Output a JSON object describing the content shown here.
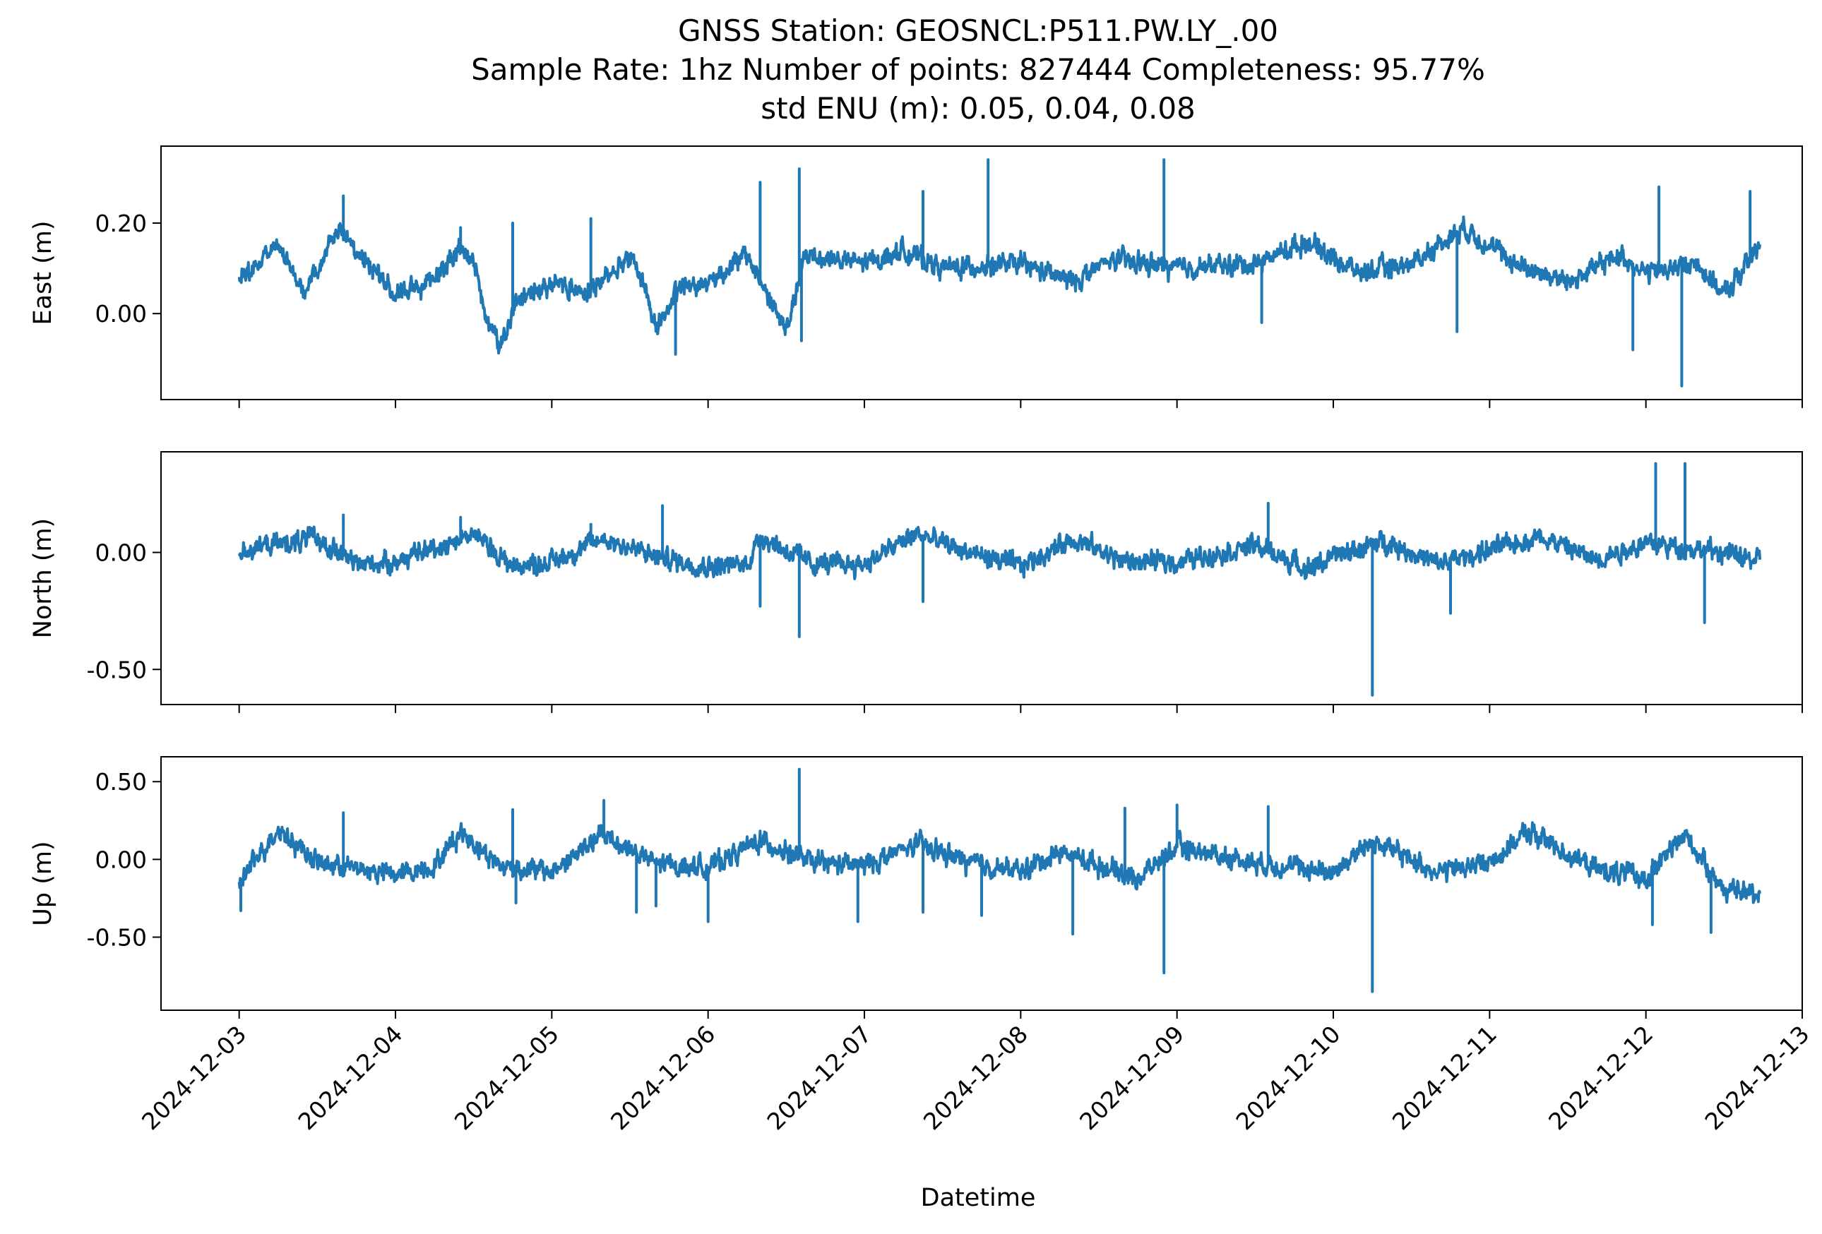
{
  "figure": {
    "title_lines": [
      "GNSS Station: GEOSNCL:P511.PW.LY_.00",
      "Sample Rate: 1hz   Number of points: 827444    Completeness:  95.77%",
      "std ENU (m):  0.05, 0.04, 0.08"
    ],
    "xlabel": "Datetime",
    "line_color": "#1f77b4"
  },
  "chart_data": {
    "type": "line",
    "x_axis": {
      "label": "Datetime",
      "range": [
        "2024-12-02T12:00",
        "2024-12-13T00:00"
      ],
      "ticks": [
        "2024-12-03",
        "2024-12-04",
        "2024-12-05",
        "2024-12-06",
        "2024-12-07",
        "2024-12-08",
        "2024-12-09",
        "2024-12-10",
        "2024-12-11",
        "2024-12-12",
        "2024-12-13"
      ],
      "data_start": "2024-12-03T00:00",
      "data_end": "2024-12-12T17:30"
    },
    "series": [
      {
        "name": "East",
        "ylabel": "East (m)",
        "ylim": [
          -0.19,
          0.37
        ],
        "ticks": [
          0.0,
          0.2
        ],
        "tick_labels": [
          "0.00",
          "0.20"
        ],
        "baseline": [
          [
            "2024-12-03T00:00",
            0.08
          ],
          [
            "2024-12-03T06:00",
            0.15
          ],
          [
            "2024-12-03T10:00",
            0.05
          ],
          [
            "2024-12-03T12:00",
            0.09
          ],
          [
            "2024-12-03T15:00",
            0.19
          ],
          [
            "2024-12-03T20:00",
            0.11
          ],
          [
            "2024-12-04T00:00",
            0.04
          ],
          [
            "2024-12-04T06:00",
            0.08
          ],
          [
            "2024-12-04T10:00",
            0.15
          ],
          [
            "2024-12-04T12:00",
            0.11
          ],
          [
            "2024-12-04T14:00",
            -0.01
          ],
          [
            "2024-12-04T16:00",
            -0.07
          ],
          [
            "2024-12-04T19:00",
            0.03
          ],
          [
            "2024-12-05T00:00",
            0.07
          ],
          [
            "2024-12-05T06:00",
            0.05
          ],
          [
            "2024-12-05T12:00",
            0.13
          ],
          [
            "2024-12-05T14:00",
            0.07
          ],
          [
            "2024-12-05T16:00",
            -0.03
          ],
          [
            "2024-12-05T20:00",
            0.06
          ],
          [
            "2024-12-06T00:00",
            0.07
          ],
          [
            "2024-12-06T06:00",
            0.13
          ],
          [
            "2024-12-06T12:00",
            -0.04
          ],
          [
            "2024-12-06T15:00",
            0.13
          ],
          [
            "2024-12-07T00:00",
            0.11
          ],
          [
            "2024-12-07T06:00",
            0.14
          ],
          [
            "2024-12-07T12:00",
            0.1
          ],
          [
            "2024-12-08T00:00",
            0.11
          ],
          [
            "2024-12-08T08:00",
            0.07
          ],
          [
            "2024-12-08T14:00",
            0.12
          ],
          [
            "2024-12-09T00:00",
            0.1
          ],
          [
            "2024-12-09T12:00",
            0.11
          ],
          [
            "2024-12-09T20:00",
            0.16
          ],
          [
            "2024-12-10T04:00",
            0.09
          ],
          [
            "2024-12-10T12:00",
            0.11
          ],
          [
            "2024-12-10T20:00",
            0.19
          ],
          [
            "2024-12-11T04:00",
            0.11
          ],
          [
            "2024-12-11T12:00",
            0.07
          ],
          [
            "2024-12-11T20:00",
            0.13
          ],
          [
            "2024-12-12T00:00",
            0.09
          ],
          [
            "2024-12-12T08:00",
            0.11
          ],
          [
            "2024-12-12T12:00",
            0.04
          ],
          [
            "2024-12-12T17:30",
            0.15
          ]
        ],
        "spikes": [
          [
            "2024-12-03T16:00",
            0.26
          ],
          [
            "2024-12-04T10:00",
            0.19
          ],
          [
            "2024-12-04T18:00",
            0.2
          ],
          [
            "2024-12-05T06:00",
            0.21
          ],
          [
            "2024-12-05T19:00",
            -0.09
          ],
          [
            "2024-12-06T08:00",
            0.29
          ],
          [
            "2024-12-06T14:00",
            0.32
          ],
          [
            "2024-12-06T14:20",
            -0.06
          ],
          [
            "2024-12-07T09:00",
            0.27
          ],
          [
            "2024-12-07T19:00",
            0.34
          ],
          [
            "2024-12-08T22:00",
            0.34
          ],
          [
            "2024-12-09T13:00",
            -0.02
          ],
          [
            "2024-12-10T19:00",
            -0.04
          ],
          [
            "2024-12-11T22:00",
            -0.08
          ],
          [
            "2024-12-12T02:00",
            0.28
          ],
          [
            "2024-12-12T05:30",
            -0.16
          ],
          [
            "2024-12-12T16:00",
            0.27
          ]
        ]
      },
      {
        "name": "North",
        "ylabel": "North (m)",
        "ylim": [
          -0.65,
          0.43
        ],
        "ticks": [
          -0.5,
          0.0
        ],
        "tick_labels": [
          "-0.50",
          "0.00"
        ],
        "baseline": [
          [
            "2024-12-03T00:00",
            0.01
          ],
          [
            "2024-12-03T12:00",
            0.06
          ],
          [
            "2024-12-03T18:00",
            -0.05
          ],
          [
            "2024-12-04T00:00",
            -0.04
          ],
          [
            "2024-12-04T12:00",
            0.08
          ],
          [
            "2024-12-04T18:00",
            -0.06
          ],
          [
            "2024-12-05T00:00",
            -0.04
          ],
          [
            "2024-12-05T08:00",
            0.06
          ],
          [
            "2024-12-05T16:00",
            -0.02
          ],
          [
            "2024-12-06T00:00",
            -0.06
          ],
          [
            "2024-12-06T06:00",
            -0.05
          ],
          [
            "2024-12-06T08:00",
            0.07
          ],
          [
            "2024-12-06T16:00",
            -0.05
          ],
          [
            "2024-12-07T00:00",
            -0.05
          ],
          [
            "2024-12-07T08:00",
            0.08
          ],
          [
            "2024-12-07T16:00",
            0.0
          ],
          [
            "2024-12-08T00:00",
            -0.06
          ],
          [
            "2024-12-08T08:00",
            0.06
          ],
          [
            "2024-12-08T16:00",
            -0.04
          ],
          [
            "2024-12-09T00:00",
            -0.04
          ],
          [
            "2024-12-09T12:00",
            0.03
          ],
          [
            "2024-12-09T20:00",
            -0.07
          ],
          [
            "2024-12-10T00:00",
            -0.02
          ],
          [
            "2024-12-10T08:00",
            0.05
          ],
          [
            "2024-12-10T16:00",
            -0.05
          ],
          [
            "2024-12-11T00:00",
            0.01
          ],
          [
            "2024-12-11T08:00",
            0.07
          ],
          [
            "2024-12-11T16:00",
            -0.03
          ],
          [
            "2024-12-12T00:00",
            0.04
          ],
          [
            "2024-12-12T12:00",
            0.0
          ],
          [
            "2024-12-12T17:30",
            -0.04
          ]
        ],
        "spikes": [
          [
            "2024-12-03T16:00",
            0.16
          ],
          [
            "2024-12-04T10:00",
            0.15
          ],
          [
            "2024-12-05T06:00",
            0.12
          ],
          [
            "2024-12-05T17:00",
            0.2
          ],
          [
            "2024-12-06T08:00",
            -0.23
          ],
          [
            "2024-12-06T14:00",
            -0.36
          ],
          [
            "2024-12-07T09:00",
            -0.21
          ],
          [
            "2024-12-09T14:00",
            0.21
          ],
          [
            "2024-12-10T06:00",
            -0.61
          ],
          [
            "2024-12-10T18:00",
            -0.26
          ],
          [
            "2024-12-12T01:30",
            0.38
          ],
          [
            "2024-12-12T06:00",
            0.38
          ],
          [
            "2024-12-12T09:00",
            -0.3
          ]
        ]
      },
      {
        "name": "Up",
        "ylabel": "Up (m)",
        "ylim": [
          -0.97,
          0.66
        ],
        "ticks": [
          -0.5,
          0.0,
          0.5
        ],
        "tick_labels": [
          "-0.50",
          "0.00",
          "0.50"
        ],
        "baseline": [
          [
            "2024-12-03T00:00",
            -0.15
          ],
          [
            "2024-12-03T06:00",
            0.2
          ],
          [
            "2024-12-03T12:00",
            -0.02
          ],
          [
            "2024-12-03T18:00",
            -0.06
          ],
          [
            "2024-12-04T00:00",
            -0.1
          ],
          [
            "2024-12-04T06:00",
            -0.04
          ],
          [
            "2024-12-04T10:00",
            0.18
          ],
          [
            "2024-12-04T16:00",
            -0.04
          ],
          [
            "2024-12-05T00:00",
            -0.08
          ],
          [
            "2024-12-05T08:00",
            0.16
          ],
          [
            "2024-12-05T16:00",
            -0.03
          ],
          [
            "2024-12-06T00:00",
            -0.05
          ],
          [
            "2024-12-06T08:00",
            0.12
          ],
          [
            "2024-12-06T16:00",
            -0.02
          ],
          [
            "2024-12-07T00:00",
            -0.04
          ],
          [
            "2024-12-07T08:00",
            0.1
          ],
          [
            "2024-12-07T16:00",
            -0.02
          ],
          [
            "2024-12-08T00:00",
            -0.08
          ],
          [
            "2024-12-08T06:00",
            0.05
          ],
          [
            "2024-12-08T18:00",
            -0.12
          ],
          [
            "2024-12-09T00:00",
            0.08
          ],
          [
            "2024-12-09T12:00",
            -0.02
          ],
          [
            "2024-12-10T00:00",
            -0.08
          ],
          [
            "2024-12-10T06:00",
            0.12
          ],
          [
            "2024-12-10T16:00",
            -0.08
          ],
          [
            "2024-12-11T00:00",
            -0.02
          ],
          [
            "2024-12-11T06:00",
            0.18
          ],
          [
            "2024-12-11T16:00",
            -0.06
          ],
          [
            "2024-12-12T00:00",
            -0.12
          ],
          [
            "2024-12-12T06:00",
            0.16
          ],
          [
            "2024-12-12T12:00",
            -0.2
          ],
          [
            "2024-12-12T17:30",
            -0.22
          ]
        ],
        "spikes": [
          [
            "2024-12-03T00:15",
            -0.33
          ],
          [
            "2024-12-03T16:00",
            0.3
          ],
          [
            "2024-12-04T18:00",
            0.32
          ],
          [
            "2024-12-04T18:30",
            -0.28
          ],
          [
            "2024-12-05T08:00",
            0.38
          ],
          [
            "2024-12-05T13:00",
            -0.34
          ],
          [
            "2024-12-05T16:00",
            -0.3
          ],
          [
            "2024-12-06T00:00",
            -0.4
          ],
          [
            "2024-12-06T14:00",
            0.58
          ],
          [
            "2024-12-06T23:00",
            -0.4
          ],
          [
            "2024-12-07T09:00",
            -0.34
          ],
          [
            "2024-12-07T18:00",
            -0.36
          ],
          [
            "2024-12-08T08:00",
            -0.48
          ],
          [
            "2024-12-08T16:00",
            0.33
          ],
          [
            "2024-12-08T22:00",
            -0.73
          ],
          [
            "2024-12-09T00:00",
            0.35
          ],
          [
            "2024-12-09T14:00",
            0.34
          ],
          [
            "2024-12-10T06:00",
            -0.85
          ],
          [
            "2024-12-12T01:00",
            -0.42
          ],
          [
            "2024-12-12T10:00",
            -0.47
          ]
        ]
      }
    ]
  }
}
